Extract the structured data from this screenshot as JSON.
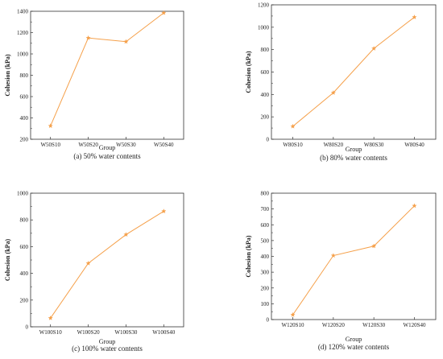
{
  "colors": {
    "series": "#f5a04a",
    "axis": "#333333"
  },
  "chart_data": [
    {
      "type": "line",
      "categories": [
        "W50S10",
        "W50S20",
        "W50S30",
        "W50S40"
      ],
      "values": [
        325,
        1150,
        1115,
        1385
      ],
      "xlabel": "Group",
      "ylabel": "Cohesion (kPa)",
      "ylim": [
        200,
        1400
      ],
      "yticks": [
        "200",
        "400",
        "600",
        "800",
        "1000",
        "1200",
        "1400"
      ],
      "caption": "(a) 50% water contents",
      "grid": false,
      "marker": "star"
    },
    {
      "type": "line",
      "categories": [
        "W80S10",
        "W80S20",
        "W80S30",
        "W80S40"
      ],
      "values": [
        115,
        415,
        810,
        1090
      ],
      "xlabel": "Group",
      "ylabel": "Cohesion (kPa)",
      "ylim": [
        0,
        1200
      ],
      "yticks": [
        "0",
        "200",
        "400",
        "600",
        "800",
        "1000",
        "1200"
      ],
      "caption": "(b) 80% water contents",
      "grid": false,
      "marker": "star"
    },
    {
      "type": "line",
      "categories": [
        "W100S10",
        "W100S20",
        "W100S30",
        "W100S40"
      ],
      "values": [
        65,
        475,
        690,
        865
      ],
      "xlabel": "Group",
      "ylabel": "Cohesion (kPa)",
      "ylim": [
        0,
        1000
      ],
      "yticks": [
        "0",
        "200",
        "400",
        "600",
        "800",
        "1000"
      ],
      "caption": "(c) 100% water contents",
      "grid": false,
      "marker": "star"
    },
    {
      "type": "line",
      "categories": [
        "W120S10",
        "W120S20",
        "W120S30",
        "W120S40"
      ],
      "values": [
        30,
        405,
        465,
        720
      ],
      "xlabel": "Group",
      "ylabel": "Cohesion (kPa)",
      "ylim": [
        0,
        800
      ],
      "yticks": [
        "0",
        "100",
        "200",
        "300",
        "400",
        "500",
        "600",
        "700",
        "800"
      ],
      "caption": "(d) 120% water contents",
      "grid": false,
      "marker": "star"
    }
  ]
}
